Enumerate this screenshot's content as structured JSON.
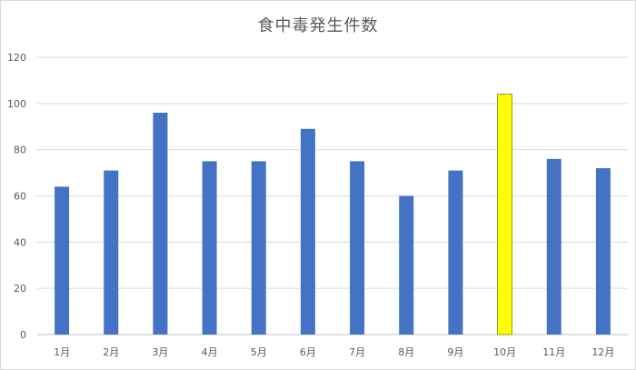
{
  "chart_data": {
    "type": "bar",
    "title": "食中毒発生件数",
    "xlabel": "",
    "ylabel": "",
    "categories": [
      "1月",
      "2月",
      "3月",
      "4月",
      "5月",
      "6月",
      "7月",
      "8月",
      "9月",
      "10月",
      "11月",
      "12月"
    ],
    "values": [
      64,
      71,
      96,
      75,
      75,
      89,
      75,
      60,
      71,
      104,
      76,
      72
    ],
    "ylim": [
      0,
      120
    ],
    "yticks": [
      "0",
      "20",
      "40",
      "60",
      "80",
      "100",
      "120"
    ],
    "grid": true,
    "legend": "none",
    "colors": {
      "bar": "#4472c4",
      "highlight": "#ffff00",
      "highlight_category": "10月",
      "grid": "#d9d9d9",
      "text": "#595959"
    }
  }
}
